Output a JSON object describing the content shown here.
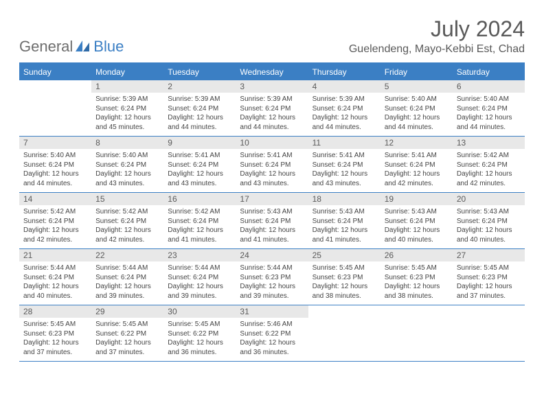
{
  "brand": {
    "text1": "General",
    "text2": "Blue"
  },
  "title": "July 2024",
  "location": "Guelendeng, Mayo-Kebbi Est, Chad",
  "colors": {
    "accent": "#3b7fc4",
    "header_text": "#ffffff",
    "daynum_bg": "#e8e8e8",
    "text_muted": "#595959",
    "cell_text": "#444444"
  },
  "dayHeaders": [
    "Sunday",
    "Monday",
    "Tuesday",
    "Wednesday",
    "Thursday",
    "Friday",
    "Saturday"
  ],
  "weeks": [
    [
      {
        "n": "",
        "sr": "",
        "ss": "",
        "dl1": "",
        "dl2": ""
      },
      {
        "n": "1",
        "sr": "Sunrise: 5:39 AM",
        "ss": "Sunset: 6:24 PM",
        "dl1": "Daylight: 12 hours",
        "dl2": "and 45 minutes."
      },
      {
        "n": "2",
        "sr": "Sunrise: 5:39 AM",
        "ss": "Sunset: 6:24 PM",
        "dl1": "Daylight: 12 hours",
        "dl2": "and 44 minutes."
      },
      {
        "n": "3",
        "sr": "Sunrise: 5:39 AM",
        "ss": "Sunset: 6:24 PM",
        "dl1": "Daylight: 12 hours",
        "dl2": "and 44 minutes."
      },
      {
        "n": "4",
        "sr": "Sunrise: 5:39 AM",
        "ss": "Sunset: 6:24 PM",
        "dl1": "Daylight: 12 hours",
        "dl2": "and 44 minutes."
      },
      {
        "n": "5",
        "sr": "Sunrise: 5:40 AM",
        "ss": "Sunset: 6:24 PM",
        "dl1": "Daylight: 12 hours",
        "dl2": "and 44 minutes."
      },
      {
        "n": "6",
        "sr": "Sunrise: 5:40 AM",
        "ss": "Sunset: 6:24 PM",
        "dl1": "Daylight: 12 hours",
        "dl2": "and 44 minutes."
      }
    ],
    [
      {
        "n": "7",
        "sr": "Sunrise: 5:40 AM",
        "ss": "Sunset: 6:24 PM",
        "dl1": "Daylight: 12 hours",
        "dl2": "and 44 minutes."
      },
      {
        "n": "8",
        "sr": "Sunrise: 5:40 AM",
        "ss": "Sunset: 6:24 PM",
        "dl1": "Daylight: 12 hours",
        "dl2": "and 43 minutes."
      },
      {
        "n": "9",
        "sr": "Sunrise: 5:41 AM",
        "ss": "Sunset: 6:24 PM",
        "dl1": "Daylight: 12 hours",
        "dl2": "and 43 minutes."
      },
      {
        "n": "10",
        "sr": "Sunrise: 5:41 AM",
        "ss": "Sunset: 6:24 PM",
        "dl1": "Daylight: 12 hours",
        "dl2": "and 43 minutes."
      },
      {
        "n": "11",
        "sr": "Sunrise: 5:41 AM",
        "ss": "Sunset: 6:24 PM",
        "dl1": "Daylight: 12 hours",
        "dl2": "and 43 minutes."
      },
      {
        "n": "12",
        "sr": "Sunrise: 5:41 AM",
        "ss": "Sunset: 6:24 PM",
        "dl1": "Daylight: 12 hours",
        "dl2": "and 42 minutes."
      },
      {
        "n": "13",
        "sr": "Sunrise: 5:42 AM",
        "ss": "Sunset: 6:24 PM",
        "dl1": "Daylight: 12 hours",
        "dl2": "and 42 minutes."
      }
    ],
    [
      {
        "n": "14",
        "sr": "Sunrise: 5:42 AM",
        "ss": "Sunset: 6:24 PM",
        "dl1": "Daylight: 12 hours",
        "dl2": "and 42 minutes."
      },
      {
        "n": "15",
        "sr": "Sunrise: 5:42 AM",
        "ss": "Sunset: 6:24 PM",
        "dl1": "Daylight: 12 hours",
        "dl2": "and 42 minutes."
      },
      {
        "n": "16",
        "sr": "Sunrise: 5:42 AM",
        "ss": "Sunset: 6:24 PM",
        "dl1": "Daylight: 12 hours",
        "dl2": "and 41 minutes."
      },
      {
        "n": "17",
        "sr": "Sunrise: 5:43 AM",
        "ss": "Sunset: 6:24 PM",
        "dl1": "Daylight: 12 hours",
        "dl2": "and 41 minutes."
      },
      {
        "n": "18",
        "sr": "Sunrise: 5:43 AM",
        "ss": "Sunset: 6:24 PM",
        "dl1": "Daylight: 12 hours",
        "dl2": "and 41 minutes."
      },
      {
        "n": "19",
        "sr": "Sunrise: 5:43 AM",
        "ss": "Sunset: 6:24 PM",
        "dl1": "Daylight: 12 hours",
        "dl2": "and 40 minutes."
      },
      {
        "n": "20",
        "sr": "Sunrise: 5:43 AM",
        "ss": "Sunset: 6:24 PM",
        "dl1": "Daylight: 12 hours",
        "dl2": "and 40 minutes."
      }
    ],
    [
      {
        "n": "21",
        "sr": "Sunrise: 5:44 AM",
        "ss": "Sunset: 6:24 PM",
        "dl1": "Daylight: 12 hours",
        "dl2": "and 40 minutes."
      },
      {
        "n": "22",
        "sr": "Sunrise: 5:44 AM",
        "ss": "Sunset: 6:24 PM",
        "dl1": "Daylight: 12 hours",
        "dl2": "and 39 minutes."
      },
      {
        "n": "23",
        "sr": "Sunrise: 5:44 AM",
        "ss": "Sunset: 6:24 PM",
        "dl1": "Daylight: 12 hours",
        "dl2": "and 39 minutes."
      },
      {
        "n": "24",
        "sr": "Sunrise: 5:44 AM",
        "ss": "Sunset: 6:23 PM",
        "dl1": "Daylight: 12 hours",
        "dl2": "and 39 minutes."
      },
      {
        "n": "25",
        "sr": "Sunrise: 5:45 AM",
        "ss": "Sunset: 6:23 PM",
        "dl1": "Daylight: 12 hours",
        "dl2": "and 38 minutes."
      },
      {
        "n": "26",
        "sr": "Sunrise: 5:45 AM",
        "ss": "Sunset: 6:23 PM",
        "dl1": "Daylight: 12 hours",
        "dl2": "and 38 minutes."
      },
      {
        "n": "27",
        "sr": "Sunrise: 5:45 AM",
        "ss": "Sunset: 6:23 PM",
        "dl1": "Daylight: 12 hours",
        "dl2": "and 37 minutes."
      }
    ],
    [
      {
        "n": "28",
        "sr": "Sunrise: 5:45 AM",
        "ss": "Sunset: 6:23 PM",
        "dl1": "Daylight: 12 hours",
        "dl2": "and 37 minutes."
      },
      {
        "n": "29",
        "sr": "Sunrise: 5:45 AM",
        "ss": "Sunset: 6:22 PM",
        "dl1": "Daylight: 12 hours",
        "dl2": "and 37 minutes."
      },
      {
        "n": "30",
        "sr": "Sunrise: 5:45 AM",
        "ss": "Sunset: 6:22 PM",
        "dl1": "Daylight: 12 hours",
        "dl2": "and 36 minutes."
      },
      {
        "n": "31",
        "sr": "Sunrise: 5:46 AM",
        "ss": "Sunset: 6:22 PM",
        "dl1": "Daylight: 12 hours",
        "dl2": "and 36 minutes."
      },
      {
        "n": "",
        "sr": "",
        "ss": "",
        "dl1": "",
        "dl2": ""
      },
      {
        "n": "",
        "sr": "",
        "ss": "",
        "dl1": "",
        "dl2": ""
      },
      {
        "n": "",
        "sr": "",
        "ss": "",
        "dl1": "",
        "dl2": ""
      }
    ]
  ]
}
